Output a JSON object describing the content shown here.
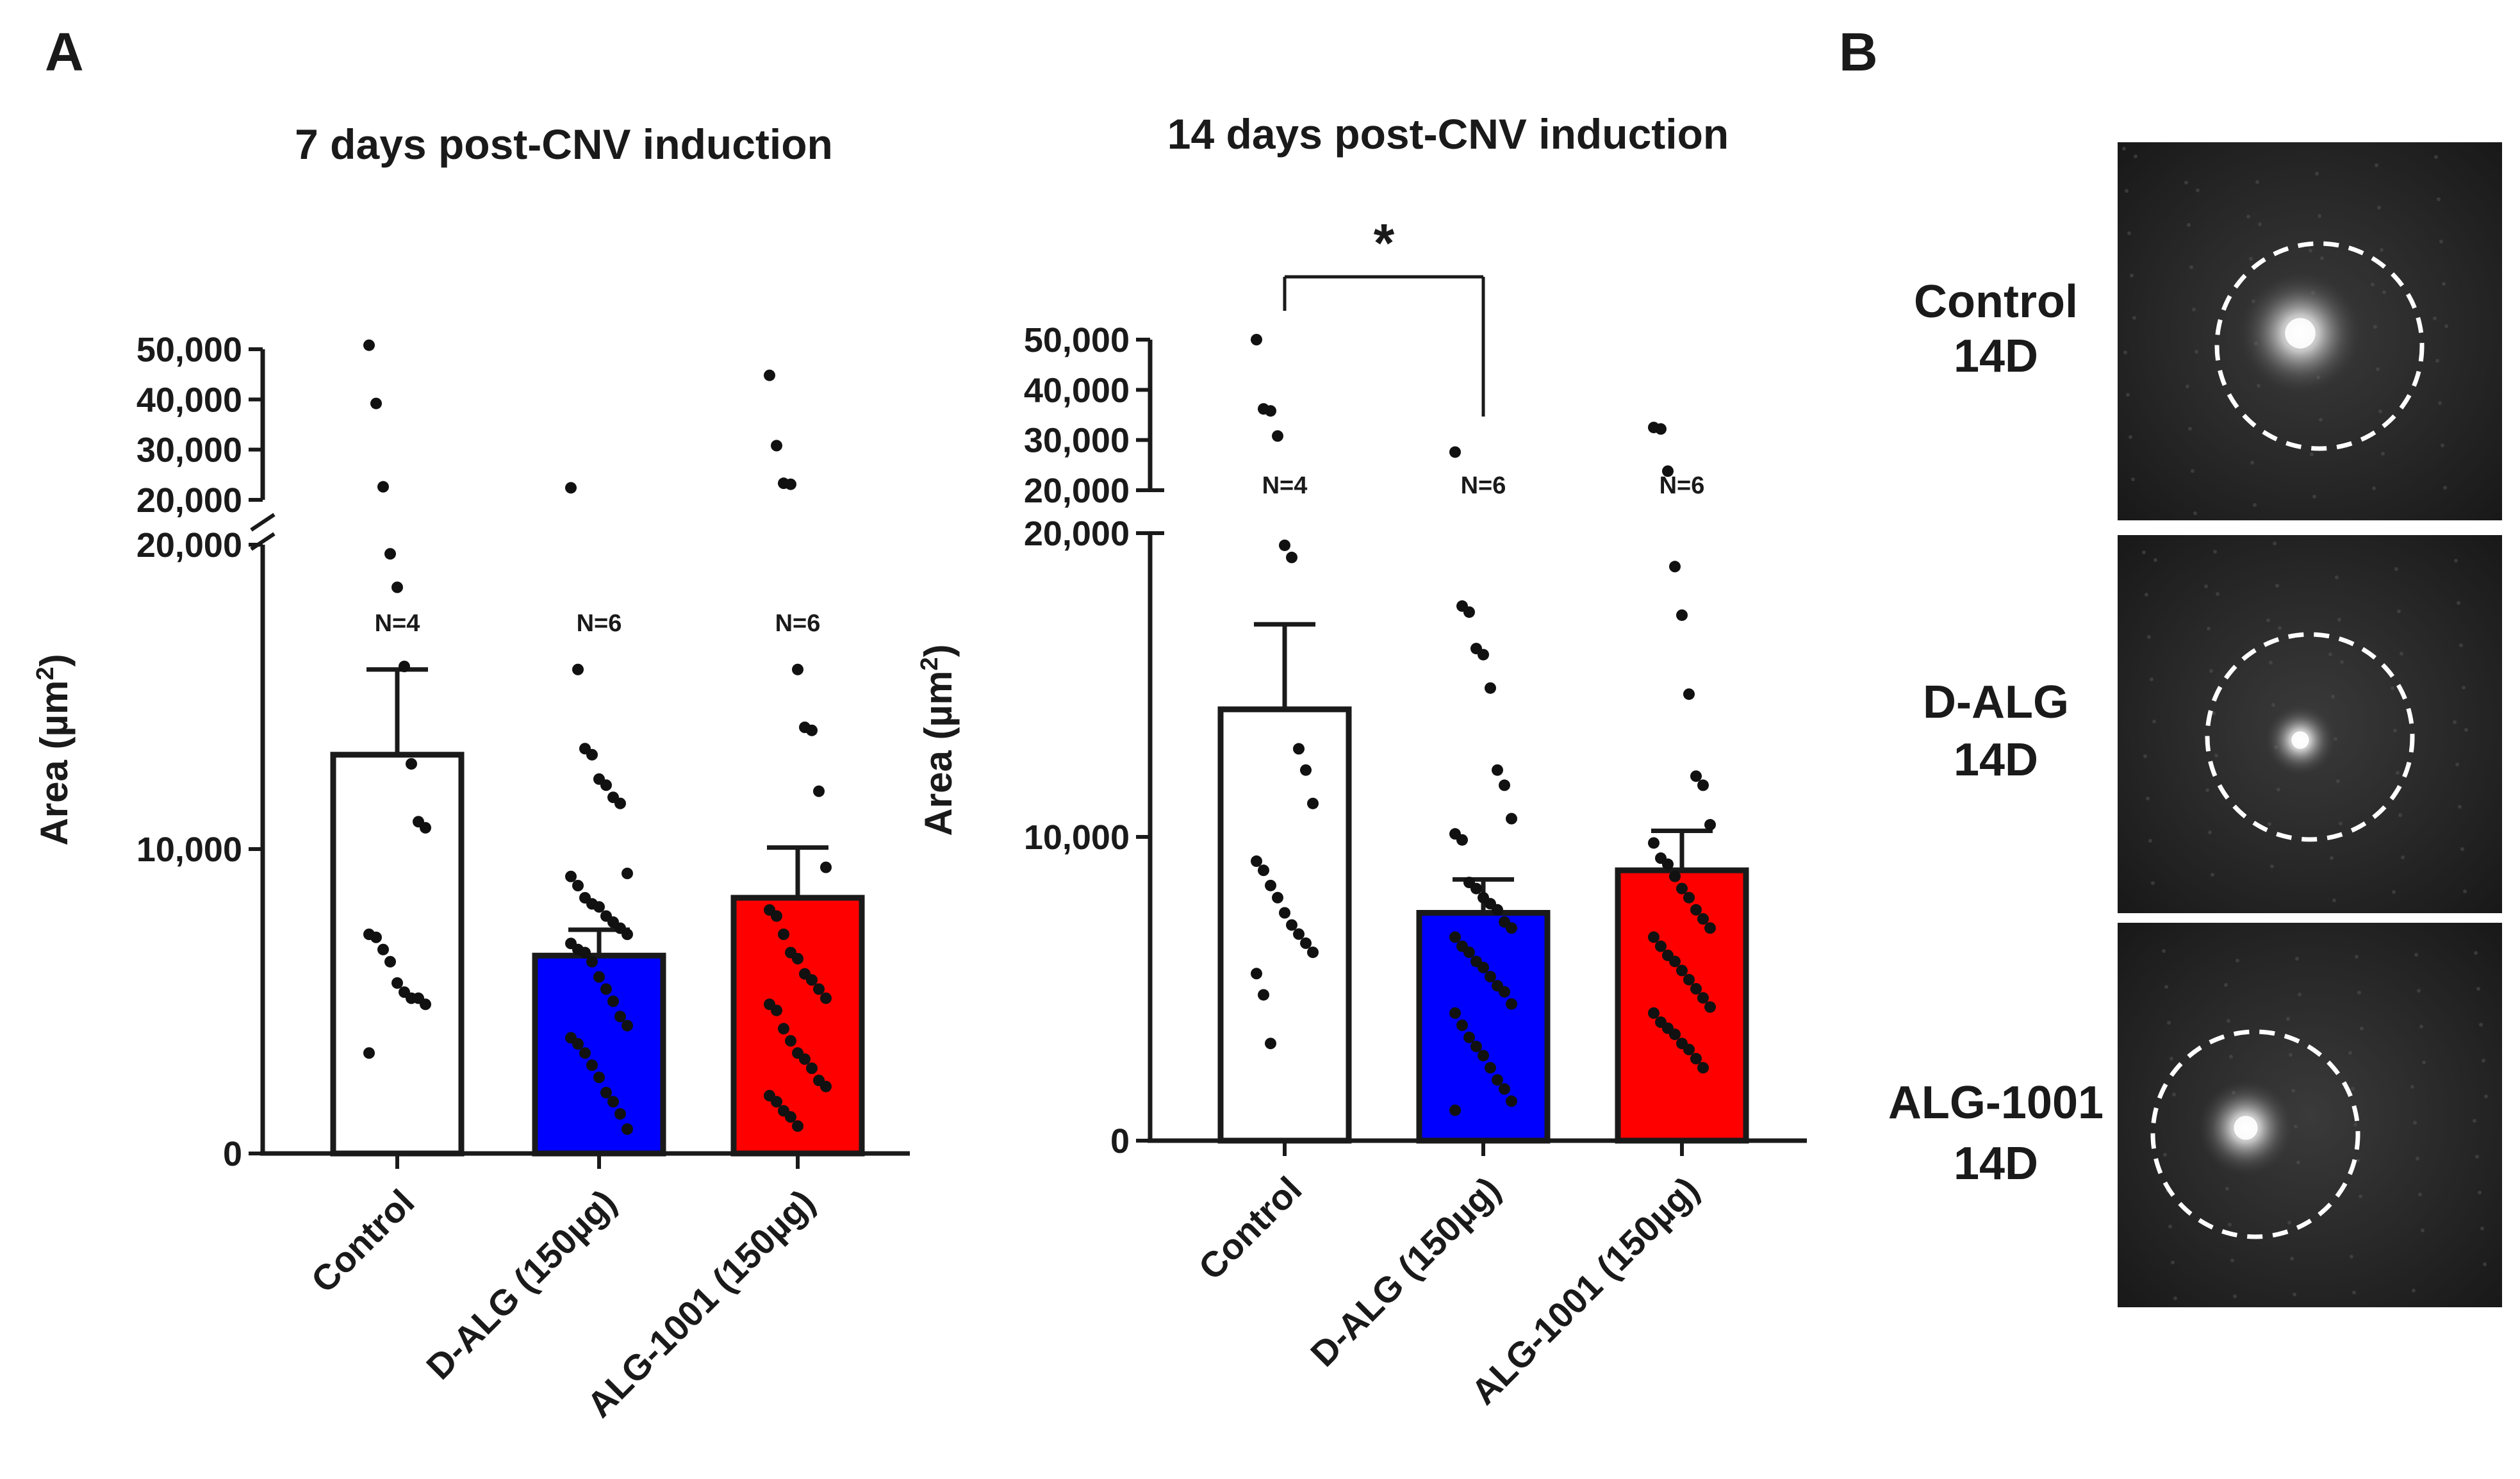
{
  "panel_a_label": "A",
  "panel_b_label": "B",
  "chart_data": [
    {
      "type": "bar",
      "title": "7  days post-CNV induction",
      "ylabel": "Area (µm²)",
      "ylabel_main": "Area (µm",
      "ylabel_sup": "2",
      "ylabel_close": ")",
      "categories": [
        "Control",
        "D-ALG (150µg)",
        "ALG-1001 (150µg)"
      ],
      "bar_colors": [
        "#ffffff",
        "#0000ff",
        "#ff0000"
      ],
      "values": [
        13100,
        6500,
        8400
      ],
      "sem": [
        2800,
        850,
        1650
      ],
      "n_labels": [
        "N=4",
        "N=6",
        "N=6"
      ],
      "lower_ylim": [
        0,
        20000
      ],
      "lower_ticks": [
        0,
        10000,
        20000
      ],
      "lower_tick_labels": [
        "0",
        "10,000",
        "20,000"
      ],
      "upper_ylim": [
        20000,
        50000
      ],
      "upper_ticks": [
        20000,
        30000,
        40000,
        50000
      ],
      "upper_tick_labels": [
        "20,000",
        "30,000",
        "40,000",
        "50,000"
      ],
      "points": [
        [
          50800,
          39200,
          22600,
          19700,
          18600,
          16000,
          12800,
          10900,
          10700,
          7200,
          7100,
          6700,
          6300,
          5600,
          5300,
          5100,
          5100,
          4900,
          3300
        ],
        [
          22400,
          15900,
          13300,
          13100,
          12300,
          12100,
          11700,
          11500,
          9200,
          9100,
          8800,
          8400,
          8200,
          8100,
          7800,
          7600,
          7400,
          7200,
          6900,
          6700,
          6600,
          6300,
          5800,
          5400,
          5000,
          4500,
          4200,
          3800,
          3600,
          3300,
          2900,
          2500,
          2000,
          1700,
          1300,
          800
        ],
        [
          44800,
          30800,
          23300,
          23100,
          15900,
          14000,
          13900,
          11900,
          9400,
          8000,
          7800,
          7200,
          6600,
          6400,
          5900,
          5700,
          5400,
          5100,
          4900,
          4700,
          4100,
          3700,
          3300,
          3100,
          2800,
          2400,
          2200,
          1900,
          1700,
          1400,
          1200,
          900
        ]
      ]
    },
    {
      "type": "bar",
      "title": "14  days post-CNV induction",
      "ylabel": "Area (µm²)",
      "ylabel_main": "Area (µm",
      "ylabel_sup": "2",
      "ylabel_close": ")",
      "categories": [
        "Control",
        "D-ALG (150µg)",
        "ALG-1001 (150µg)"
      ],
      "bar_colors": [
        "#ffffff",
        "#0000ff",
        "#ff0000"
      ],
      "values": [
        14200,
        7500,
        8900
      ],
      "sem": [
        2800,
        1100,
        1300
      ],
      "n_labels": [
        "N=4",
        "N=6",
        "N=6"
      ],
      "lower_ylim": [
        0,
        20000
      ],
      "lower_ticks": [
        0,
        10000,
        20000
      ],
      "lower_tick_labels": [
        "0",
        "10,000",
        "20,000"
      ],
      "upper_ylim": [
        20000,
        50000
      ],
      "upper_ticks": [
        20000,
        30000,
        40000,
        50000
      ],
      "upper_tick_labels": [
        "20,000",
        "30,000",
        "40,000",
        "50,000"
      ],
      "significance": "*",
      "points": [
        [
          50000,
          36200,
          35800,
          30800,
          19600,
          19200,
          12900,
          12200,
          11100,
          9200,
          8900,
          8400,
          8000,
          7500,
          7100,
          6800,
          6500,
          6200,
          5500,
          4800,
          3200
        ],
        [
          27600,
          17600,
          17400,
          16200,
          16000,
          14900,
          12200,
          11700,
          10600,
          10100,
          9900,
          8500,
          8300,
          8000,
          7800,
          7600,
          7200,
          7000,
          6700,
          6400,
          6200,
          5900,
          5700,
          5400,
          5100,
          4900,
          4500,
          4200,
          3800,
          3400,
          3100,
          2800,
          2400,
          2000,
          1700,
          1300,
          1000
        ],
        [
          32500,
          32200,
          23800,
          18900,
          17300,
          14700,
          12000,
          11700,
          10400,
          9800,
          9300,
          9100,
          8700,
          8300,
          8000,
          7600,
          7300,
          7000,
          6700,
          6400,
          6100,
          5900,
          5600,
          5300,
          5000,
          4700,
          4400,
          4200,
          3900,
          3700,
          3500,
          3200,
          3000,
          2700,
          2400
        ]
      ]
    }
  ],
  "images": [
    {
      "label_line1": "Control",
      "label_line2": "14D"
    },
    {
      "label_line1": "D-ALG",
      "label_line2": "14D"
    },
    {
      "label_line1": "ALG-1001",
      "label_line2": "14D"
    }
  ]
}
